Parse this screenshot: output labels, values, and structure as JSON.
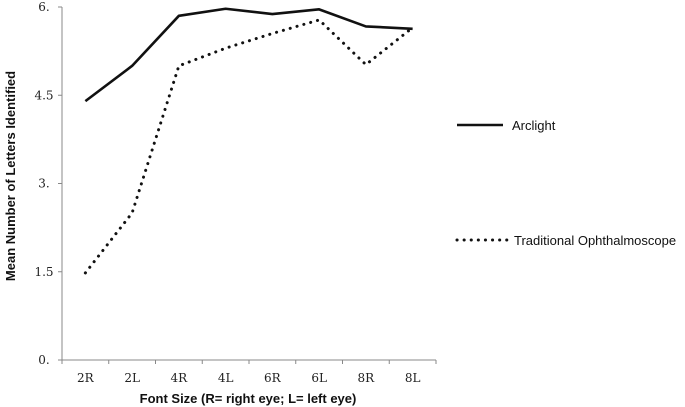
{
  "chart_data": {
    "type": "line",
    "categories": [
      "2R",
      "2L",
      "4R",
      "4L",
      "6R",
      "6L",
      "8R",
      "8L"
    ],
    "series": [
      {
        "name": "Arclight",
        "values": [
          4.4,
          5.0,
          5.85,
          5.97,
          5.88,
          5.96,
          5.67,
          5.63
        ],
        "style": "solid",
        "color": "#111111"
      },
      {
        "name": "Traditional Ophthalmoscope",
        "values": [
          1.48,
          2.5,
          5.0,
          5.3,
          5.55,
          5.78,
          5.02,
          5.65
        ],
        "style": "dotted",
        "color": "#111111"
      }
    ],
    "xlabel": "Font Size (R= right eye; L= left eye)",
    "ylabel": "Mean Number of Letters Identified",
    "y_ticks": [
      "0.",
      "1.5",
      "3.",
      "4.5",
      "6."
    ],
    "y_tick_values": [
      0,
      1.5,
      3,
      4.5,
      6
    ],
    "ylim": [
      0,
      6
    ],
    "grid": false,
    "legend_position": "right"
  }
}
